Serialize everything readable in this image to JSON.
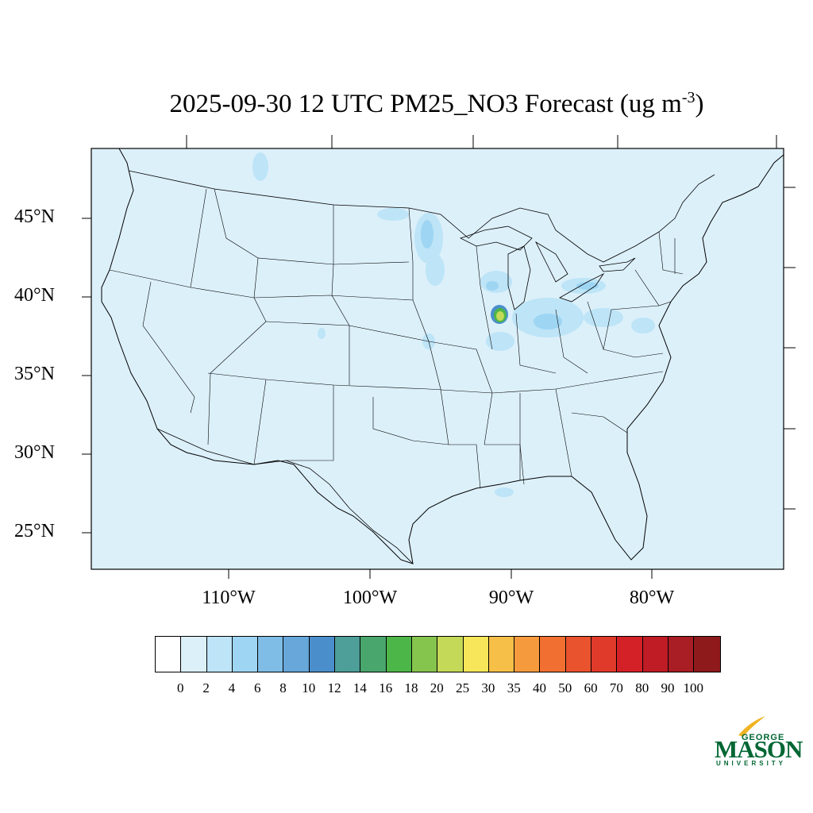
{
  "title": {
    "text": "2025-09-30 12 UTC PM25_NO3 Forecast (ug m",
    "superscript": "-3",
    "closing": ")"
  },
  "map": {
    "background_color": "#dcf0fa",
    "lat_labels": [
      "45°N",
      "40°N",
      "35°N",
      "30°N",
      "25°N"
    ],
    "lon_labels": [
      "110°W",
      "100°W",
      "90°W",
      "80°W"
    ]
  },
  "colorbar": {
    "labels": [
      "0",
      "2",
      "4",
      "6",
      "8",
      "10",
      "12",
      "14",
      "16",
      "18",
      "20",
      "25",
      "30",
      "35",
      "40",
      "50",
      "60",
      "70",
      "80",
      "90",
      "100"
    ],
    "colors": [
      "#ffffff",
      "#dcf0fa",
      "#bde4f7",
      "#9dd5f3",
      "#7fbde6",
      "#67a7da",
      "#4a8fcb",
      "#4e9e9a",
      "#49a66c",
      "#4db648",
      "#86c54d",
      "#c4d957",
      "#f7e65a",
      "#f6bf48",
      "#f59b3d",
      "#f16f31",
      "#e9532d",
      "#e03a2a",
      "#d42127",
      "#bf1c25",
      "#a91d24",
      "#8e1a1c"
    ]
  },
  "logo": {
    "top": "GEORGE",
    "main": "MASON",
    "bottom": "UNIVERSITY",
    "color": "#006633",
    "accent": "#f0b323"
  }
}
